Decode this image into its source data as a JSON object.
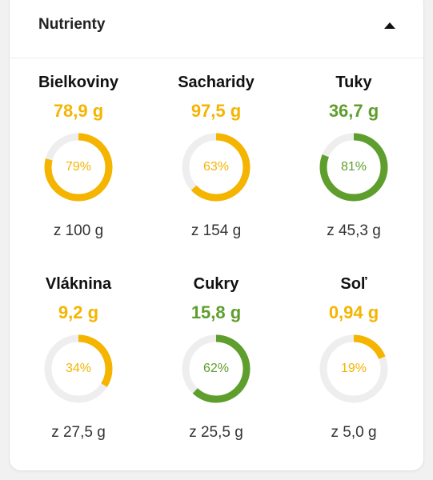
{
  "panel": {
    "title": "Nutrienty",
    "toggle_icon": "chevron-up-icon"
  },
  "colors": {
    "orange": "#f5b400",
    "green": "#5e9e2c",
    "track": "#eeeeee"
  },
  "nutrients": [
    {
      "name": "Bielkoviny",
      "value": "78,9 g",
      "percent_label": "79%",
      "percent": 79,
      "target": "z 100 g",
      "status": "orange"
    },
    {
      "name": "Sacharidy",
      "value": "97,5 g",
      "percent_label": "63%",
      "percent": 63,
      "target": "z 154 g",
      "status": "orange"
    },
    {
      "name": "Tuky",
      "value": "36,7 g",
      "percent_label": "81%",
      "percent": 81,
      "target": "z 45,3 g",
      "status": "green"
    },
    {
      "name": "Vláknina",
      "value": "9,2 g",
      "percent_label": "34%",
      "percent": 34,
      "target": "z 27,5 g",
      "status": "orange"
    },
    {
      "name": "Cukry",
      "value": "15,8 g",
      "percent_label": "62%",
      "percent": 62,
      "target": "z 25,5 g",
      "status": "green"
    },
    {
      "name": "Soľ",
      "value": "0,94 g",
      "percent_label": "19%",
      "percent": 19,
      "target": "z 5,0 g",
      "status": "orange"
    }
  ]
}
